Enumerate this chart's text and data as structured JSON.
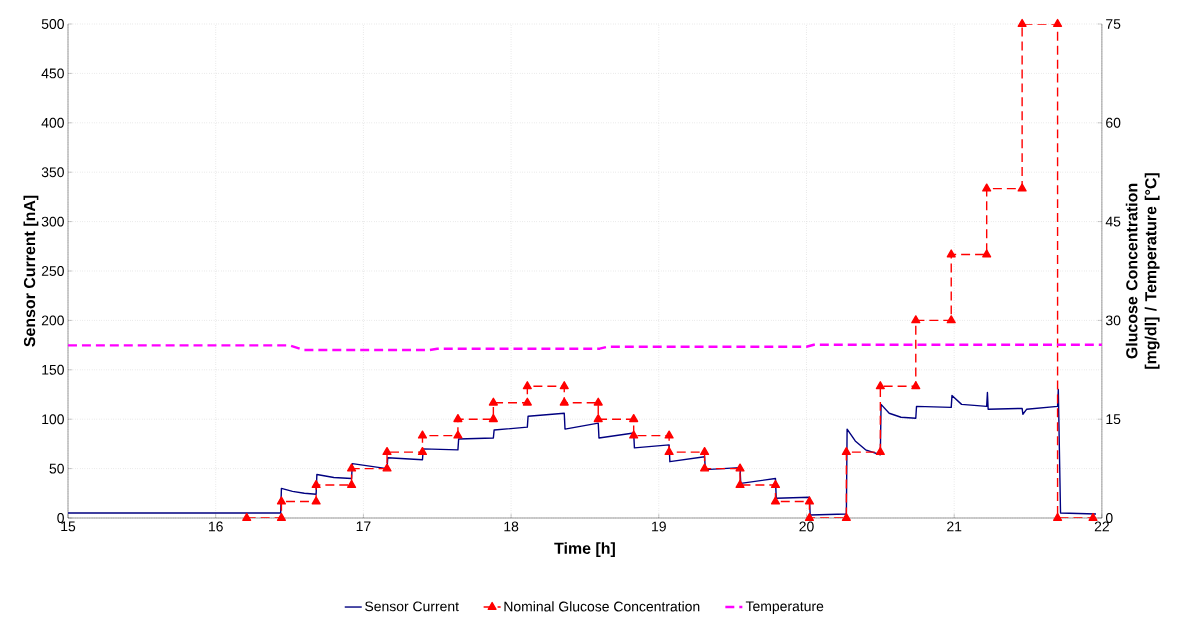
{
  "chart_data": {
    "type": "line",
    "xlabel": "Time [h]",
    "ylabel": "Sensor Current [nA]",
    "y2label": "Glucose Concentration [mg/dl] / Temperature [°C]",
    "xlim": [
      15,
      22
    ],
    "xticks": [
      15,
      16,
      17,
      18,
      19,
      20,
      21,
      22
    ],
    "ylim": [
      0,
      500
    ],
    "yticks": [
      0,
      50,
      100,
      150,
      200,
      250,
      300,
      350,
      400,
      450,
      500
    ],
    "y2lim": [
      0,
      75
    ],
    "y2ticks": [
      0,
      15,
      30,
      45,
      60,
      75
    ],
    "grid": true,
    "legend": "bottom",
    "series": [
      {
        "name": "Sensor Current",
        "color": "#000080",
        "marker": "none",
        "line_style": "solid",
        "x": [
          15,
          16.44,
          16.445,
          16.52,
          16.6,
          16.68,
          16.685,
          16.8,
          16.92,
          16.925,
          17.16,
          17.165,
          17.4,
          17.405,
          17.64,
          17.645,
          17.88,
          17.885,
          18.11,
          18.115,
          18.36,
          18.365,
          18.59,
          18.595,
          18.83,
          18.835,
          19.07,
          19.075,
          19.31,
          19.315,
          19.55,
          19.555,
          19.79,
          19.795,
          20.02,
          20.025,
          20.27,
          20.275,
          20.33,
          20.4,
          20.5,
          20.505,
          20.56,
          20.64,
          20.74,
          20.745,
          20.98,
          20.985,
          21.05,
          21.22,
          21.225,
          21.23,
          21.46,
          21.465,
          21.49,
          21.7,
          21.705,
          21.72,
          21.96
        ],
        "values": [
          5,
          5,
          30,
          27,
          25,
          24,
          44,
          41,
          40,
          55,
          50,
          61,
          59,
          70,
          69,
          80,
          81,
          89,
          92,
          103,
          106,
          90,
          96,
          81,
          86,
          71,
          74,
          57,
          62,
          49,
          51,
          35,
          40,
          20,
          21,
          3,
          4,
          90,
          78,
          69,
          64,
          115,
          106,
          102,
          101,
          113,
          112,
          124,
          115,
          113,
          127,
          110,
          111,
          105,
          110,
          113,
          130,
          5,
          4
        ]
      },
      {
        "name": "Nominal Glucose Concentration",
        "color": "#ff0000",
        "marker": "triangle",
        "line_style": "dashed",
        "axis": "y2",
        "x": [
          16.21,
          16.445,
          16.445,
          16.68,
          16.68,
          16.92,
          16.92,
          17.16,
          17.16,
          17.4,
          17.4,
          17.64,
          17.64,
          17.88,
          17.88,
          18.11,
          18.11,
          18.36,
          18.36,
          18.59,
          18.59,
          18.83,
          18.83,
          19.07,
          19.07,
          19.31,
          19.31,
          19.55,
          19.55,
          19.79,
          19.79,
          20.02,
          20.02,
          20.27,
          20.27,
          20.5,
          20.5,
          20.74,
          20.74,
          20.98,
          20.98,
          21.22,
          21.22,
          21.46,
          21.46,
          21.7,
          21.7,
          21.94
        ],
        "values": [
          0,
          0,
          2.5,
          2.5,
          5,
          5,
          7.5,
          7.5,
          10,
          10,
          12.5,
          12.5,
          15,
          15,
          17.5,
          17.5,
          20,
          20,
          17.5,
          17.5,
          15,
          15,
          12.5,
          12.5,
          10,
          10,
          7.5,
          7.5,
          5,
          5,
          2.5,
          2.5,
          0,
          0,
          10,
          10,
          20,
          20,
          30,
          30,
          40,
          40,
          50,
          50,
          75,
          75,
          0,
          0
        ]
      },
      {
        "name": "Temperature",
        "color": "#ff00ff",
        "marker": "none",
        "line_style": "dashed",
        "axis": "y2",
        "x": [
          15,
          16.5,
          16.6,
          17.45,
          17.5,
          18.6,
          18.65,
          20.0,
          20.05,
          22
        ],
        "values": [
          26.2,
          26.2,
          25.5,
          25.5,
          25.7,
          25.7,
          26.0,
          26.0,
          26.3,
          26.3
        ]
      }
    ]
  }
}
